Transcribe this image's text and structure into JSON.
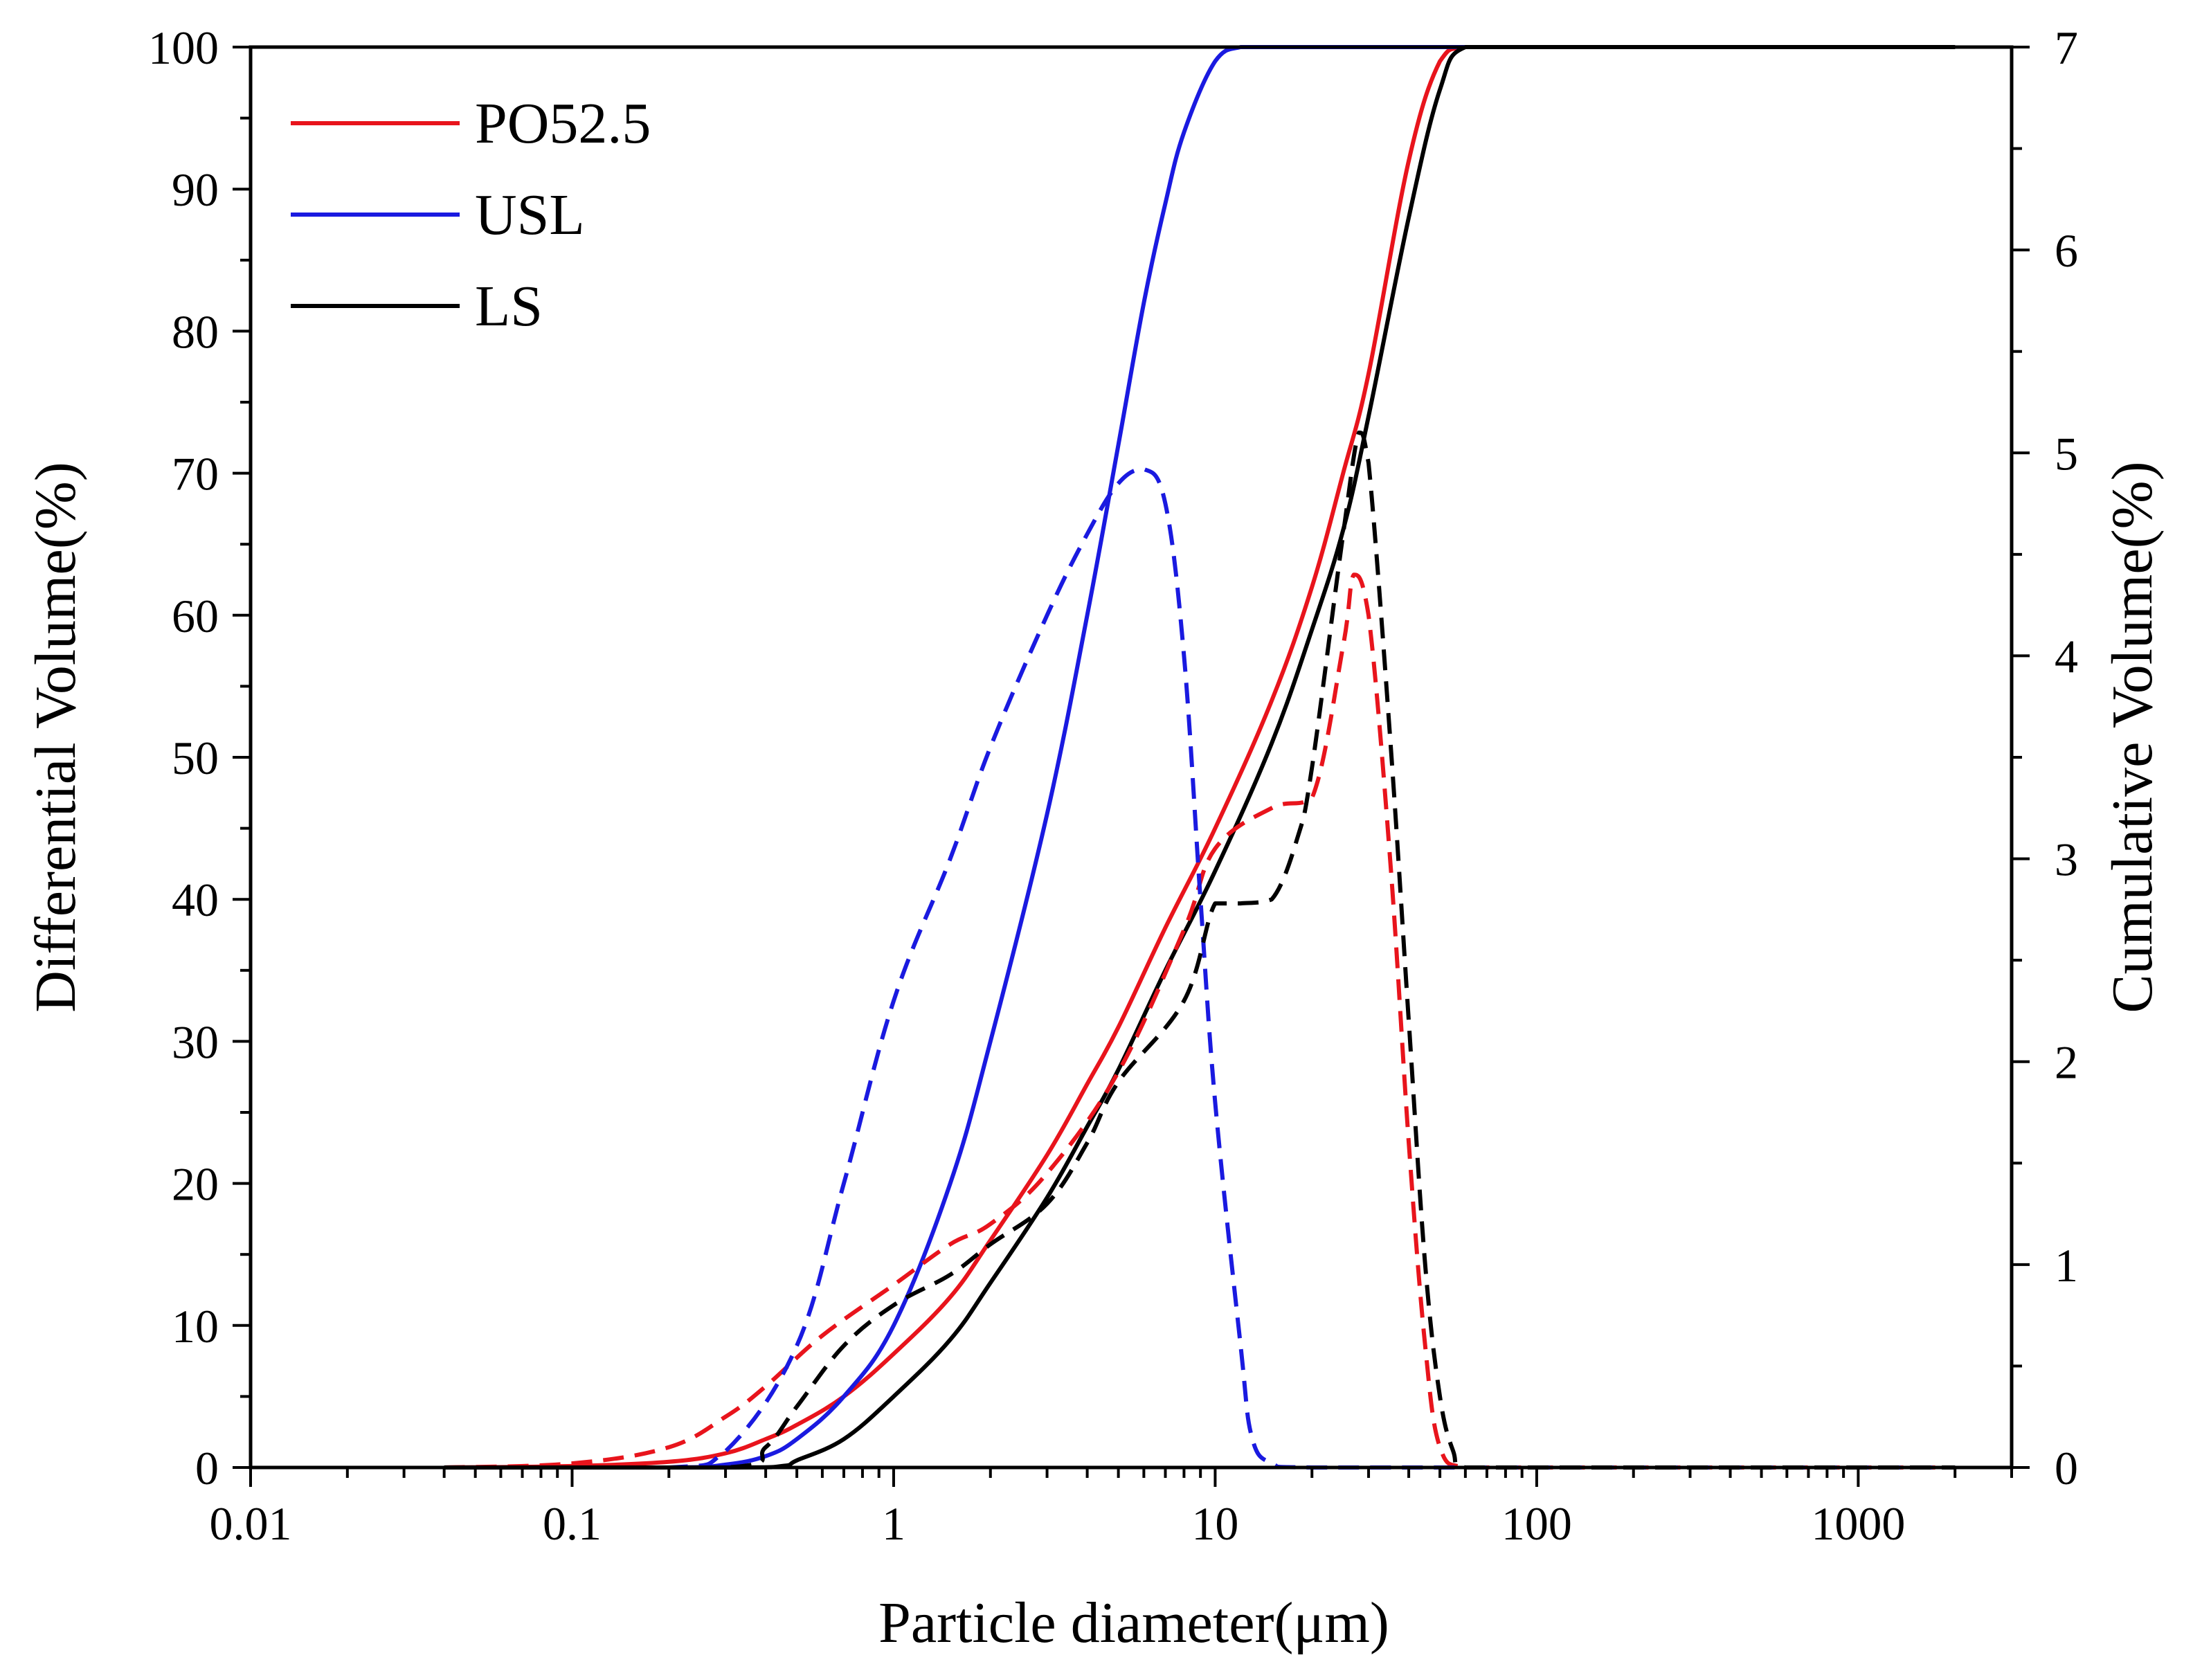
{
  "chart_data": {
    "type": "line",
    "title": "",
    "xlabel": "Particle diameter(μm)",
    "ylabel": "Differential Volume(%)",
    "y2label": "Cumulative Volume(%)",
    "x_scale": "log",
    "xlim": [
      0.01,
      3000
    ],
    "ylim": [
      0,
      100
    ],
    "y2lim": [
      0,
      7
    ],
    "x_ticks": [
      0.01,
      0.1,
      1,
      10,
      100,
      1000
    ],
    "x_tick_labels": [
      "0.01",
      "0.1",
      "1",
      "10",
      "100",
      "1000"
    ],
    "y_ticks": [
      0,
      10,
      20,
      30,
      40,
      50,
      60,
      70,
      80,
      90,
      100
    ],
    "y_tick_labels": [
      "0",
      "10",
      "20",
      "30",
      "40",
      "50",
      "60",
      "70",
      "80",
      "90",
      "100"
    ],
    "y2_ticks": [
      0,
      1,
      2,
      3,
      4,
      5,
      6,
      7
    ],
    "y2_tick_labels": [
      "0",
      "1",
      "2",
      "3",
      "4",
      "5",
      "6",
      "7"
    ],
    "grid": false,
    "legend_position": "top-left",
    "series": [
      {
        "name": "PO52.5",
        "color": "#e8141c",
        "style": "solid",
        "axis": "left",
        "x": [
          0.04,
          0.1,
          0.2,
          0.3,
          0.4,
          0.5,
          0.7,
          1,
          1.5,
          2,
          3,
          4,
          5,
          7,
          10,
          15,
          20,
          25,
          30,
          40,
          50,
          60,
          100,
          1000,
          2000
        ],
        "y": [
          0,
          0.1,
          0.4,
          1,
          2,
          3,
          5,
          8,
          12,
          16,
          22,
          27,
          31,
          38,
          45,
          54,
          62,
          70,
          77,
          92,
          99,
          100,
          100,
          100,
          100
        ]
      },
      {
        "name": "USL",
        "color": "#1a1ae0",
        "style": "solid",
        "axis": "left",
        "x": [
          0.04,
          0.2,
          0.3,
          0.4,
          0.5,
          0.7,
          1,
          1.5,
          2,
          3,
          4,
          5,
          6,
          7,
          8,
          10,
          12,
          15,
          20,
          100,
          1000,
          2000
        ],
        "y": [
          0,
          0,
          0.2,
          0.8,
          2,
          5,
          10,
          20,
          30,
          46,
          60,
          72,
          82,
          89,
          94,
          99,
          100,
          100,
          100,
          100,
          100,
          100
        ]
      },
      {
        "name": "LS",
        "color": "#000000",
        "style": "solid",
        "axis": "left",
        "x": [
          0.04,
          0.3,
          0.45,
          0.5,
          0.7,
          1,
          1.5,
          2,
          3,
          4,
          5,
          7,
          10,
          15,
          20,
          25,
          30,
          40,
          50,
          60,
          100,
          1000,
          2000
        ],
        "y": [
          0,
          0,
          0.1,
          0.5,
          2,
          5,
          9,
          13,
          19,
          24,
          28,
          35,
          42,
          51,
          59,
          66,
          74,
          88,
          97,
          100,
          100,
          100,
          100
        ]
      },
      {
        "name": "",
        "color": "#e8141c",
        "style": "dashed",
        "axis": "right",
        "x": [
          0.04,
          0.1,
          0.2,
          0.3,
          0.4,
          0.6,
          1,
          1.5,
          2,
          3,
          5,
          8,
          10,
          15,
          20,
          25,
          27,
          30,
          35,
          40,
          45,
          50,
          60,
          100,
          1000,
          2000
        ],
        "y": [
          0,
          0.02,
          0.1,
          0.25,
          0.4,
          0.65,
          0.9,
          1.1,
          1.2,
          1.45,
          1.95,
          2.65,
          3.05,
          3.25,
          3.3,
          4.05,
          4.4,
          4.2,
          3.0,
          1.6,
          0.6,
          0.1,
          0,
          0,
          0,
          0
        ]
      },
      {
        "name": "",
        "color": "#1a1ae0",
        "style": "dashed",
        "axis": "right",
        "x": [
          0.04,
          0.2,
          0.3,
          0.5,
          0.7,
          1,
          1.5,
          2,
          3,
          4,
          5,
          6,
          7,
          8,
          9,
          10,
          12,
          13,
          15,
          20,
          100,
          1000,
          2000
        ],
        "y": [
          0,
          0,
          0.08,
          0.6,
          1.4,
          2.3,
          3.0,
          3.55,
          4.2,
          4.6,
          4.85,
          4.92,
          4.75,
          4.0,
          2.8,
          1.8,
          0.6,
          0.15,
          0.02,
          0,
          0,
          0,
          0
        ]
      },
      {
        "name": "",
        "color": "#000000",
        "style": "dashed",
        "axis": "right",
        "x": [
          0.04,
          0.3,
          0.4,
          0.5,
          0.7,
          1,
          1.5,
          2,
          3,
          4,
          5,
          8,
          10,
          12,
          15,
          18,
          20,
          25,
          28,
          30,
          35,
          40,
          45,
          50,
          55,
          60,
          100,
          1000,
          2000
        ],
        "y": [
          0,
          0,
          0.1,
          0.3,
          0.6,
          0.8,
          0.95,
          1.1,
          1.3,
          1.6,
          1.9,
          2.3,
          2.78,
          2.78,
          2.8,
          3.1,
          3.45,
          4.6,
          5.1,
          4.95,
          3.6,
          2.2,
          1.0,
          0.35,
          0.08,
          0,
          0,
          0,
          0
        ]
      }
    ]
  }
}
